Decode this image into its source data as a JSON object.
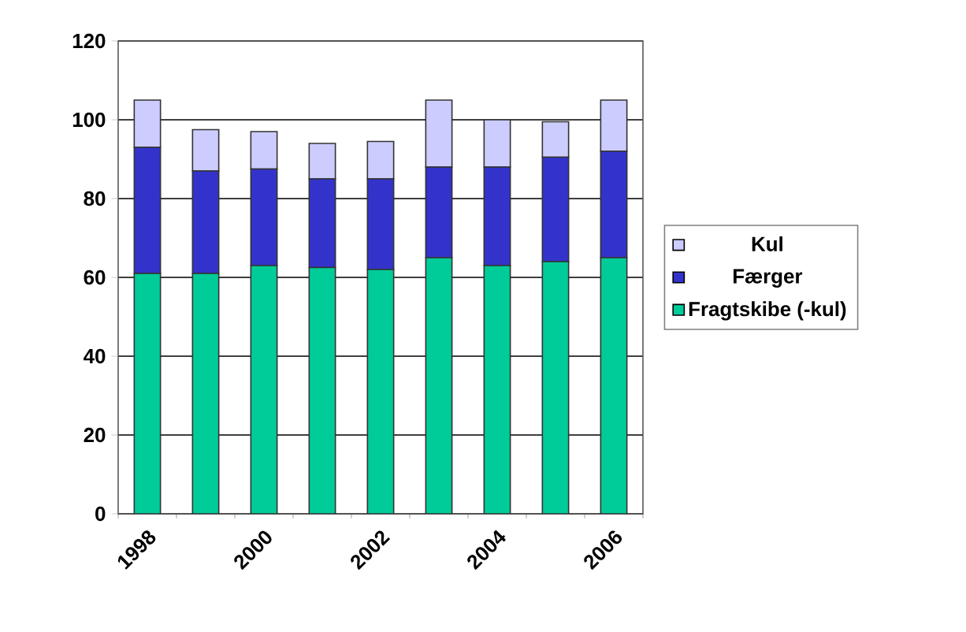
{
  "chart_data": {
    "type": "bar",
    "stacked": true,
    "categories": [
      "1998",
      null,
      "2000",
      null,
      "2002",
      null,
      "2004",
      null,
      "2006"
    ],
    "series": [
      {
        "name": "Fragtskibe (-kul)",
        "color": "#00cc99",
        "values": [
          61,
          61,
          63,
          62.5,
          62,
          65,
          63,
          64,
          65
        ]
      },
      {
        "name": "Færger",
        "color": "#3333cc",
        "values": [
          32,
          26,
          24.5,
          22.5,
          23,
          23,
          25,
          26.5,
          27
        ]
      },
      {
        "name": "Kul",
        "color": "#ccccff",
        "values": [
          12,
          10.5,
          9.5,
          9,
          9.5,
          17,
          12,
          9,
          13
        ]
      }
    ],
    "ylim": [
      0,
      120
    ],
    "yticks": [
      0,
      20,
      40,
      60,
      80,
      100,
      120
    ],
    "grid": "y",
    "legend": "right"
  }
}
